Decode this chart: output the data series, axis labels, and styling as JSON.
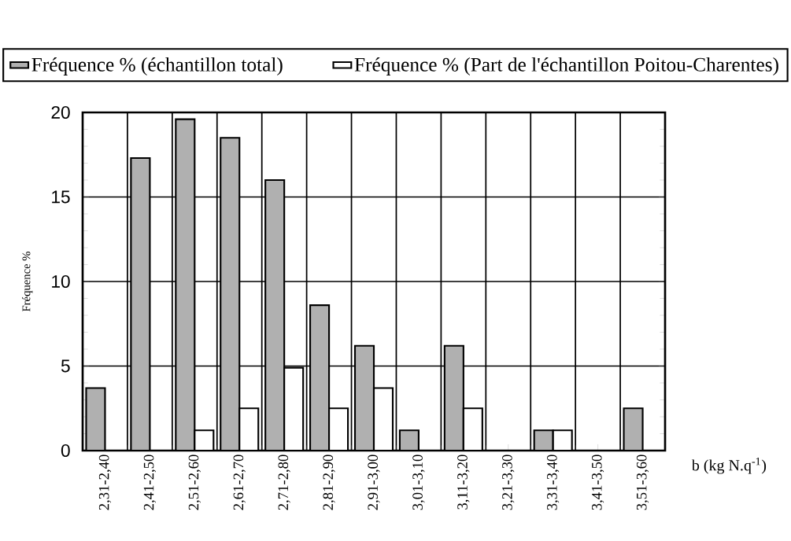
{
  "chart_data": {
    "type": "bar",
    "xlabel": "b (kg N.q$^{-1}$)",
    "ylabel": "Fréquence %",
    "categories": [
      "2,31-2,40",
      "2,41-2,50",
      "2,51-2,60",
      "2,61-2,70",
      "2,71-2,80",
      "2,81-2,90",
      "2,91-3,00",
      "3,01-3,10",
      "3,11-3,20",
      "3,21-3,30",
      "3,31-3,40",
      "3,41-3,50",
      "3,51-3,60"
    ],
    "series": [
      {
        "name": "Fréquence % (échantillon total)",
        "color": "#b0b0b0",
        "values": [
          3.7,
          17.3,
          19.6,
          18.5,
          16.0,
          8.6,
          6.2,
          1.2,
          6.2,
          null,
          1.2,
          null,
          2.5
        ]
      },
      {
        "name": "Fréquence % (Part de l'échantillon Poitou-Charentes)",
        "color": "#ffffff",
        "values": [
          null,
          null,
          1.2,
          2.5,
          4.9,
          2.5,
          3.7,
          null,
          2.5,
          null,
          1.2,
          null,
          null
        ]
      }
    ],
    "ylim": [
      0,
      20
    ],
    "yticks": [
      0,
      5,
      10,
      15,
      20
    ],
    "grid": true,
    "legend": "top"
  }
}
